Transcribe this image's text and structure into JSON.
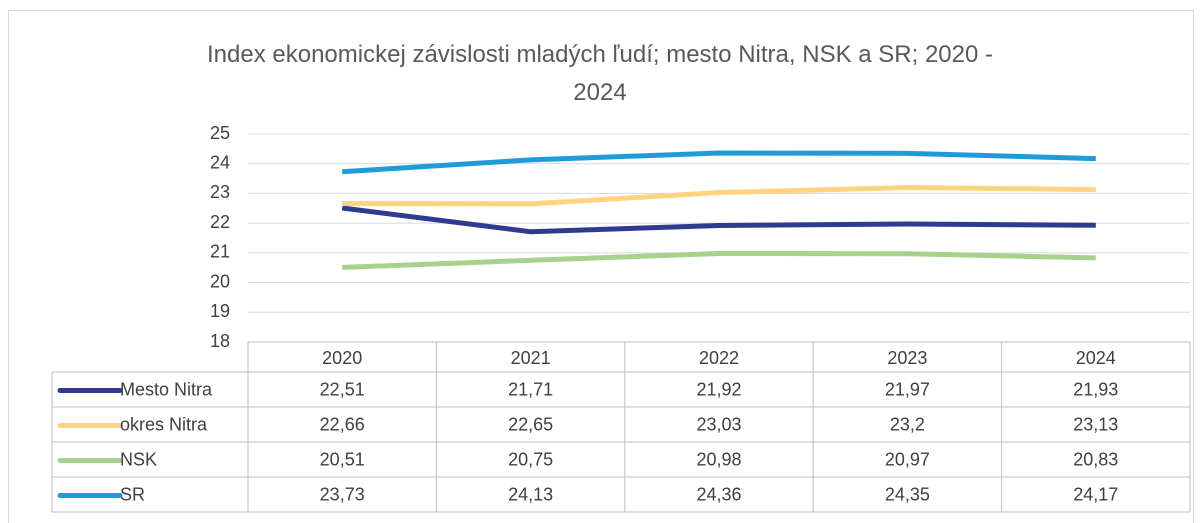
{
  "chart_data": {
    "type": "line",
    "title": "Index ekonomickej závislosti mladých ľudí; mesto Nitra, NSK a SR; 2020 - 2024",
    "categories": [
      "2020",
      "2021",
      "2022",
      "2023",
      "2024"
    ],
    "ylim": [
      18,
      25
    ],
    "yticks": [
      18,
      19,
      20,
      21,
      22,
      23,
      24,
      25
    ],
    "grid": true,
    "series": [
      {
        "name": "Mesto Nitra",
        "color": "#2f3b8f",
        "values": [
          22.51,
          21.71,
          21.92,
          21.97,
          21.93
        ],
        "value_labels": [
          "22,51",
          "21,71",
          "21,92",
          "21,97",
          "21,93"
        ]
      },
      {
        "name": "okres Nitra",
        "color": "#ffd480",
        "values": [
          22.66,
          22.65,
          23.03,
          23.2,
          23.13
        ],
        "value_labels": [
          "22,66",
          "22,65",
          "23,03",
          "23,2",
          "23,13"
        ]
      },
      {
        "name": "NSK",
        "color": "#a9d18e",
        "values": [
          20.51,
          20.75,
          20.98,
          20.97,
          20.83
        ],
        "value_labels": [
          "20,51",
          "20,75",
          "20,98",
          "20,97",
          "20,83"
        ]
      },
      {
        "name": "SR",
        "color": "#1f9bd7",
        "values": [
          23.73,
          24.13,
          24.36,
          24.35,
          24.17
        ],
        "value_labels": [
          "23,73",
          "24,13",
          "24,36",
          "24,35",
          "24,17"
        ]
      }
    ]
  }
}
